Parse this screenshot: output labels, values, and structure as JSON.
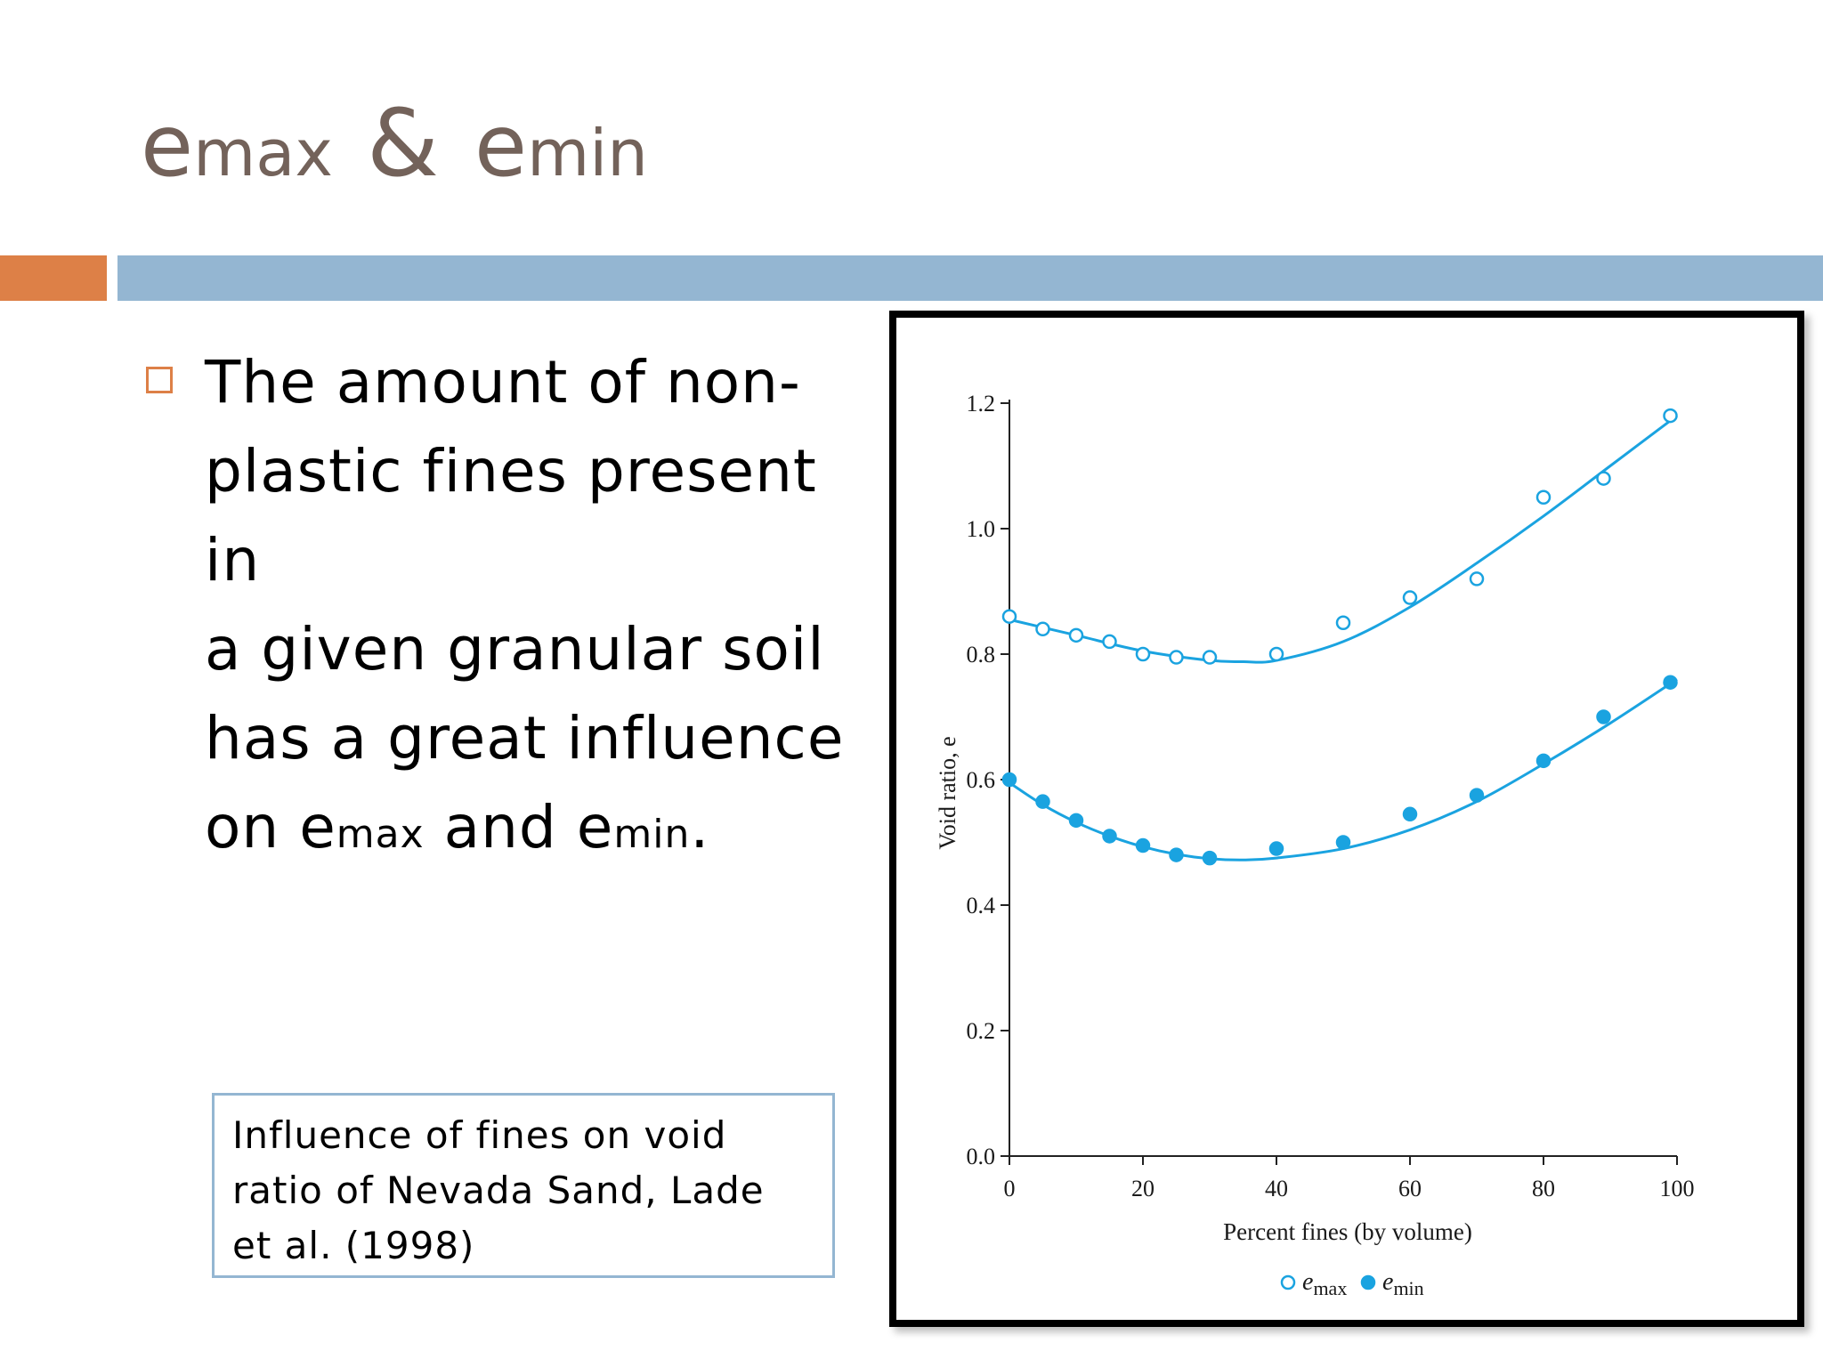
{
  "slide": {
    "title": {
      "e1": "e",
      "sub1": "max",
      "amp": "&",
      "e2": "e",
      "sub2": "min"
    },
    "bullet": {
      "line1": "The amount of non-",
      "line2": "plastic fines present in",
      "line3": "a given granular soil",
      "line4": "has a great influence",
      "line5_pre": "on e",
      "line5_sub1": "max",
      "line5_mid": " and e",
      "line5_sub2": "min",
      "line5_end": "."
    },
    "caption": "Influence of fines on void ratio of Nevada Sand, Lade et al. (1998)",
    "colors": {
      "accent_orange": "#dd8047",
      "accent_blue": "#94b6d2",
      "series": "#1aa3e0",
      "title_text": "#73625a"
    }
  },
  "chart_data": {
    "type": "scatter",
    "xlabel": "Percent fines (by volume)",
    "ylabel": "Void ratio, e",
    "xlim": [
      0,
      100
    ],
    "ylim": [
      0,
      1.2
    ],
    "xticks": [
      "0",
      "20",
      "40",
      "60",
      "80",
      "100"
    ],
    "yticks": [
      "0.0",
      "0.2",
      "0.4",
      "0.6",
      "0.8",
      "1.0",
      "1.2"
    ],
    "legend_position": "bottom-center",
    "series": [
      {
        "name": "emax",
        "legend_e": "e",
        "legend_sub": "max",
        "marker": "open-circle",
        "x": [
          0,
          5,
          10,
          15,
          20,
          25,
          30,
          40,
          50,
          60,
          70,
          80,
          89,
          99
        ],
        "y": [
          0.86,
          0.84,
          0.83,
          0.82,
          0.8,
          0.795,
          0.795,
          0.8,
          0.85,
          0.89,
          0.92,
          1.05,
          1.08,
          1.18
        ],
        "trend": {
          "x": [
            0,
            10,
            20,
            30,
            35,
            40,
            50,
            60,
            70,
            80,
            90,
            100
          ],
          "y": [
            0.855,
            0.83,
            0.805,
            0.79,
            0.788,
            0.79,
            0.82,
            0.875,
            0.945,
            1.02,
            1.1,
            1.18
          ]
        }
      },
      {
        "name": "emin",
        "legend_e": "e",
        "legend_sub": "min",
        "marker": "filled-circle",
        "x": [
          0,
          5,
          10,
          15,
          20,
          25,
          30,
          40,
          50,
          60,
          70,
          80,
          89,
          99
        ],
        "y": [
          0.6,
          0.565,
          0.535,
          0.51,
          0.495,
          0.48,
          0.475,
          0.49,
          0.5,
          0.545,
          0.575,
          0.63,
          0.7,
          0.755
        ],
        "trend": {
          "x": [
            0,
            5,
            10,
            15,
            20,
            25,
            30,
            35,
            40,
            50,
            60,
            70,
            80,
            90,
            100
          ],
          "y": [
            0.595,
            0.56,
            0.532,
            0.51,
            0.493,
            0.481,
            0.474,
            0.472,
            0.475,
            0.49,
            0.52,
            0.565,
            0.625,
            0.69,
            0.76
          ]
        }
      }
    ]
  }
}
